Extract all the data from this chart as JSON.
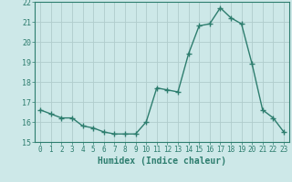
{
  "x": [
    0,
    1,
    2,
    3,
    4,
    5,
    6,
    7,
    8,
    9,
    10,
    11,
    12,
    13,
    14,
    15,
    16,
    17,
    18,
    19,
    20,
    21,
    22,
    23
  ],
  "y": [
    16.6,
    16.4,
    16.2,
    16.2,
    15.8,
    15.7,
    15.5,
    15.4,
    15.4,
    15.4,
    16.0,
    17.7,
    17.6,
    17.5,
    19.4,
    20.8,
    20.9,
    21.7,
    21.2,
    20.9,
    18.9,
    16.6,
    16.2,
    15.5
  ],
  "line_color": "#2d7d6e",
  "marker": "+",
  "marker_size": 4.0,
  "marker_lw": 1.0,
  "linewidth": 1.0,
  "bg_color": "#cde8e8",
  "grid_color": "#b0cccc",
  "axis_color": "#2d7d6e",
  "xlabel": "Humidex (Indice chaleur)",
  "xlabel_fontsize": 7,
  "ytick_fontsize": 6,
  "xtick_fontsize": 5.5,
  "ylim": [
    15,
    22
  ],
  "xlim": [
    -0.5,
    23.5
  ],
  "yticks": [
    15,
    16,
    17,
    18,
    19,
    20,
    21,
    22
  ],
  "xticks": [
    0,
    1,
    2,
    3,
    4,
    5,
    6,
    7,
    8,
    9,
    10,
    11,
    12,
    13,
    14,
    15,
    16,
    17,
    18,
    19,
    20,
    21,
    22,
    23
  ]
}
